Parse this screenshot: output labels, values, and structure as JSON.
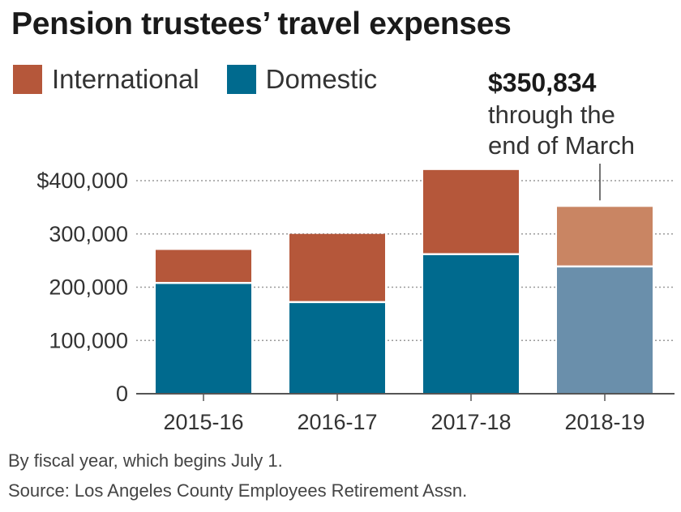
{
  "chart_data": {
    "type": "bar",
    "stacked": true,
    "title": "Pension trustees’ travel expenses",
    "categories": [
      "2015-16",
      "2016-17",
      "2017-18",
      "2018-19"
    ],
    "series": [
      {
        "name": "Domestic",
        "color": "#006a8e",
        "partial_color": "#6a8fab",
        "values": [
          208000,
          172000,
          262000,
          239000
        ]
      },
      {
        "name": "International",
        "color": "#b5573a",
        "partial_color": "#c98563",
        "values": [
          62000,
          128000,
          158000,
          111834
        ]
      }
    ],
    "partial_category": "2018-19",
    "ylim": [
      0,
      400000
    ],
    "yticks": [
      {
        "value": 0,
        "label": "0"
      },
      {
        "value": 100000,
        "label": "100,000"
      },
      {
        "value": 200000,
        "label": "200,000"
      },
      {
        "value": 300000,
        "label": "300,000"
      },
      {
        "value": 400000,
        "label": "$400,000"
      }
    ],
    "grid": true,
    "legend_position": "top-left",
    "annotation": {
      "category": "2018-19",
      "value_label": "$350,834",
      "lines": [
        "through the",
        "end of March"
      ]
    }
  },
  "notes": {
    "fiscal_year": "By fiscal year, which begins July 1.",
    "source": "Source: Los Angeles County Employees Retirement Assn."
  }
}
